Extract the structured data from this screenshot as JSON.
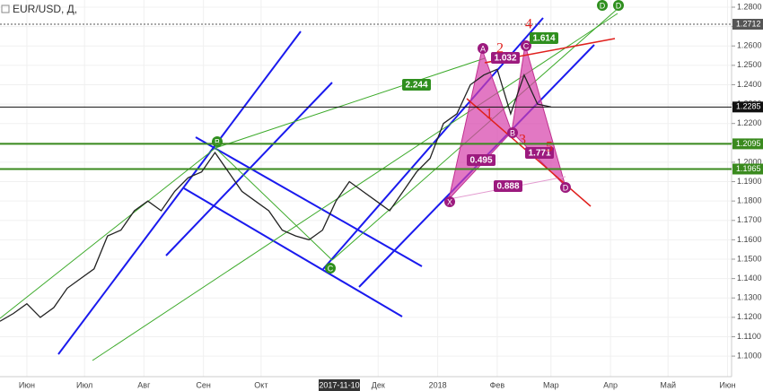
{
  "chart_data": {
    "type": "line",
    "title": "EUR/USD, Д,",
    "x": [
      0,
      1,
      2,
      3,
      4,
      5,
      6,
      7,
      8,
      9,
      10,
      11,
      12,
      13,
      14,
      15,
      16,
      17,
      18,
      19,
      20,
      21,
      22,
      23,
      24,
      25,
      26,
      27,
      28,
      29,
      30,
      31,
      32,
      33,
      34,
      35,
      36,
      37,
      38,
      39,
      40,
      41
    ],
    "series": [
      {
        "name": "EUR/USD",
        "color": "#222222",
        "values": [
          1.118,
          1.122,
          1.127,
          1.12,
          1.125,
          1.135,
          1.14,
          1.145,
          1.162,
          1.165,
          1.175,
          1.18,
          1.175,
          1.185,
          1.192,
          1.195,
          1.205,
          1.195,
          1.185,
          1.18,
          1.175,
          1.165,
          1.162,
          1.16,
          1.165,
          1.18,
          1.19,
          1.185,
          1.18,
          1.175,
          1.185,
          1.195,
          1.202,
          1.22,
          1.225,
          1.24,
          1.245,
          1.248,
          1.225,
          1.245,
          1.23,
          1.2285
        ]
      }
    ],
    "xlim": [
      0,
      54.44
    ],
    "xticks": [
      {
        "value": 2,
        "label": "Июн"
      },
      {
        "value": 6.29,
        "label": "Июл"
      },
      {
        "value": 10.71,
        "label": "Авг"
      },
      {
        "value": 15.14,
        "label": "Сен"
      },
      {
        "value": 19.43,
        "label": "Окт"
      },
      {
        "value": 28.14,
        "label": "Дек"
      },
      {
        "value": 32.57,
        "label": "2018"
      },
      {
        "value": 37,
        "label": "Фев"
      },
      {
        "value": 41,
        "label": "Мар"
      },
      {
        "value": 45.43,
        "label": "Апр"
      },
      {
        "value": 49.71,
        "label": "Май"
      },
      {
        "value": 54.14,
        "label": "Июн"
      }
    ],
    "ylim": [
      1.0894,
      1.2837
    ],
    "yticks": [
      {
        "value": 1.1,
        "label": "1.1000"
      },
      {
        "value": 1.11,
        "label": "1.1100"
      },
      {
        "value": 1.12,
        "label": "1.1200"
      },
      {
        "value": 1.13,
        "label": "1.1300"
      },
      {
        "value": 1.14,
        "label": "1.1400"
      },
      {
        "value": 1.15,
        "label": "1.1500"
      },
      {
        "value": 1.16,
        "label": "1.1600"
      },
      {
        "value": 1.17,
        "label": "1.1700"
      },
      {
        "value": 1.18,
        "label": "1.1800"
      },
      {
        "value": 1.19,
        "label": "1.1900"
      },
      {
        "value": 1.2,
        "label": "1.2000"
      },
      {
        "value": 1.21,
        "label": "1.2100"
      },
      {
        "value": 1.22,
        "label": "1.2200"
      },
      {
        "value": 1.23,
        "label": "1.2300"
      },
      {
        "value": 1.24,
        "label": "1.2400"
      },
      {
        "value": 1.25,
        "label": "1.2500"
      },
      {
        "value": 1.26,
        "label": "1.2600"
      },
      {
        "value": 1.27,
        "label": "1.2700"
      },
      {
        "value": 1.28,
        "label": "1.2800"
      }
    ],
    "levels": [
      {
        "value": 1.2712,
        "color": "#555555"
      },
      {
        "value": 1.2285,
        "color": "#111111"
      },
      {
        "value": 1.2095,
        "color": "#3a8a1e"
      },
      {
        "value": 1.1965,
        "color": "#3a8a1e"
      }
    ],
    "crosshair_label": "2017-11-10",
    "points": [
      "A",
      "B",
      "C",
      "D",
      "X",
      "B",
      "C",
      "D",
      "D"
    ],
    "ratios": [
      "2.244",
      "1.614",
      "1.032",
      "0.495",
      "1.771",
      "0.888"
    ],
    "waves": [
      "1",
      "2",
      "3",
      "4",
      "5"
    ]
  }
}
